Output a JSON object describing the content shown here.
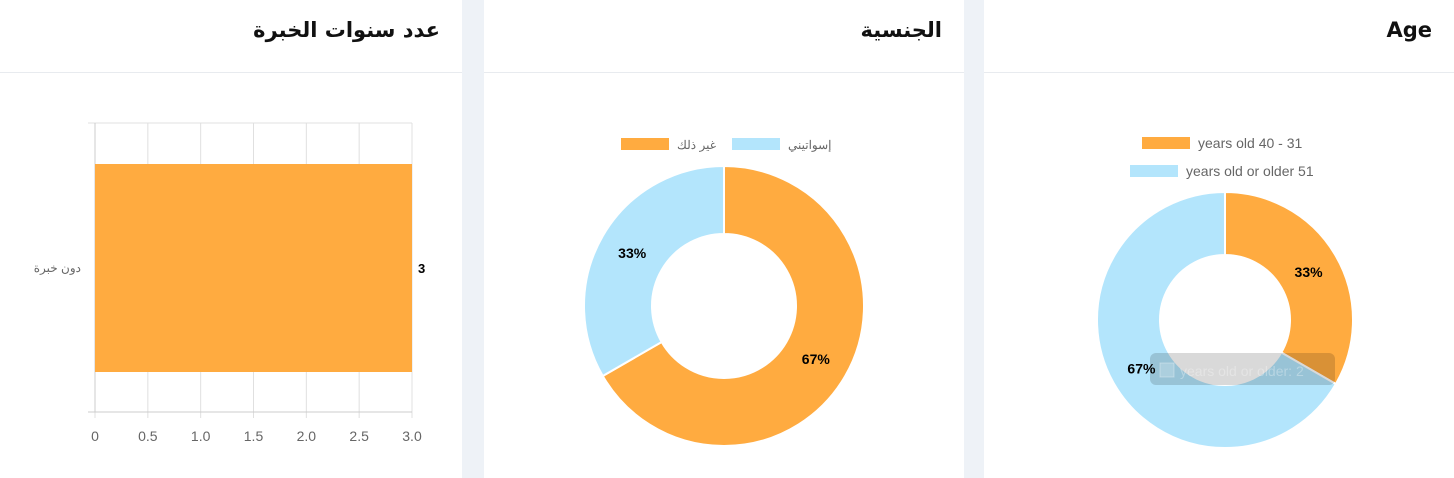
{
  "colors": {
    "orange": "#ffab40",
    "blue": "#b3e5fc"
  },
  "cards": [
    {
      "title": "عدد سنوات الخبرة"
    },
    {
      "title": "الجنسية"
    },
    {
      "title": "Age"
    }
  ],
  "chart_data": [
    {
      "type": "bar",
      "orientation": "horizontal",
      "categories": [
        "دون خبرة"
      ],
      "values": [
        3
      ],
      "xlim": [
        0,
        3
      ],
      "xticks": [
        "0",
        "0.5",
        "1.0",
        "1.5",
        "2.0",
        "2.5",
        "3.0"
      ],
      "grid": true,
      "data_labels": [
        "3"
      ]
    },
    {
      "type": "pie",
      "donut": true,
      "legend": "top",
      "labels": [
        "غير ذلك",
        "إسواتيني"
      ],
      "values": [
        2,
        1
      ],
      "percent_labels": [
        "67%",
        "33%"
      ],
      "colors": [
        "#ffab40",
        "#b3e5fc"
      ]
    },
    {
      "type": "pie",
      "donut": true,
      "legend": "top",
      "labels": [
        "years old 40 - 31",
        "years old or older 51"
      ],
      "values": [
        1,
        2
      ],
      "percent_labels": [
        "33%",
        "67%"
      ],
      "colors": [
        "#ffab40",
        "#b3e5fc"
      ],
      "tooltip": "years old or older: 2"
    }
  ]
}
